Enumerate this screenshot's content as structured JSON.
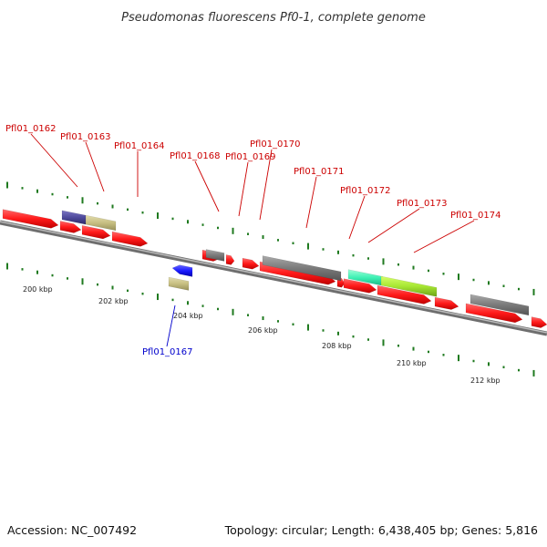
{
  "title": "Pseudomonas fluorescens Pf0-1, complete genome",
  "accession": "Accession: NC_007492",
  "summary": "Topology: circular; Length: 6,438,405 bp; Genes: 5,816",
  "colors": {
    "forward_label": "#cc0000",
    "reverse_label": "#0000cc",
    "cds": "#ff1a1a",
    "cds_dark": "#c80000",
    "other": "#7a7a7a",
    "backbone": "#8c8c8c",
    "tick": "#1f7a1f"
  },
  "labels_top": [
    {
      "name": "Pfl01_0162"
    },
    {
      "name": "Pfl01_0163"
    },
    {
      "name": "Pfl01_0164"
    },
    {
      "name": "Pfl01_0168"
    },
    {
      "name": "Pfl01_0169"
    },
    {
      "name": "Pfl01_0170"
    },
    {
      "name": "Pfl01_0171"
    },
    {
      "name": "Pfl01_0172"
    },
    {
      "name": "Pfl01_0173"
    },
    {
      "name": "Pfl01_0174"
    }
  ],
  "labels_bottom": [
    {
      "name": "Pfl01_0167"
    }
  ],
  "kbp_ticks": [
    {
      "label": "200 kbp"
    },
    {
      "label": "202 kbp"
    },
    {
      "label": "204 kbp"
    },
    {
      "label": "206 kbp"
    },
    {
      "label": "208 kbp"
    },
    {
      "label": "210 kbp"
    },
    {
      "label": "212 kbp"
    }
  ]
}
